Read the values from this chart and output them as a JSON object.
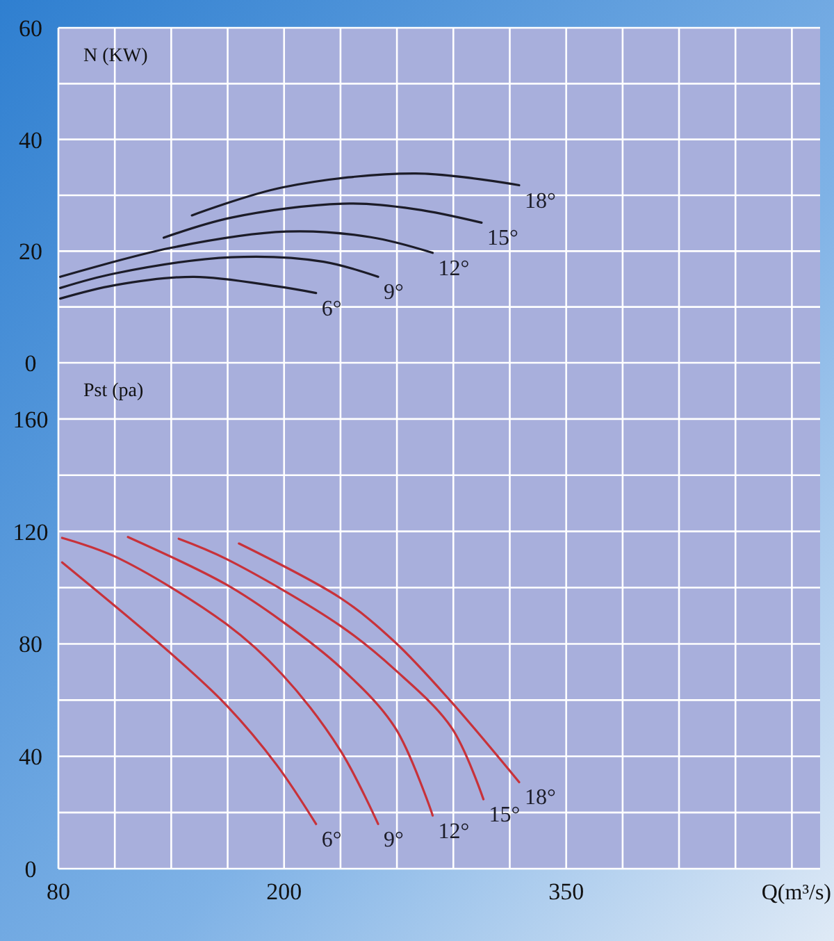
{
  "chart_data": [
    {
      "type": "line",
      "ylabel": "N (KW)",
      "xlim": [
        80,
        485
      ],
      "ylim": [
        0,
        60
      ],
      "xticks": [
        80,
        {
          "value": 110,
          "label": null
        },
        {
          "value": 140,
          "label": null
        },
        {
          "value": 170,
          "label": null
        },
        200,
        {
          "value": 230,
          "label": null
        },
        {
          "value": 260,
          "label": null
        },
        {
          "value": 290,
          "label": null
        },
        {
          "value": 320,
          "label": null
        },
        350,
        {
          "value": 380,
          "label": null
        },
        {
          "value": 410,
          "label": null
        },
        {
          "value": 440,
          "label": null
        },
        {
          "value": 470,
          "label": null
        }
      ],
      "yticks": [
        0,
        {
          "value": 10,
          "label": null
        },
        20,
        {
          "value": 30,
          "label": null
        },
        40,
        {
          "value": 50,
          "label": null
        },
        60
      ],
      "tick_labels": "y",
      "grid": true,
      "marker": "none",
      "line_style": "solid",
      "series": [
        {
          "name": "6°",
          "color": "#1c1c28",
          "x": [
            81,
            110,
            152,
            196,
            217
          ],
          "values": [
            11.5,
            13.9,
            15.4,
            13.7,
            12.5
          ]
        },
        {
          "name": "9°",
          "color": "#1c1c28",
          "x": [
            81,
            110,
            172,
            221,
            250
          ],
          "values": [
            13.4,
            16.0,
            18.9,
            18.1,
            15.4
          ]
        },
        {
          "name": "12°",
          "color": "#1c1c28",
          "x": [
            81,
            140,
            201,
            246,
            279
          ],
          "values": [
            15.4,
            20.6,
            23.5,
            22.5,
            19.7
          ]
        },
        {
          "name": "15°",
          "color": "#1c1c28",
          "x": [
            136,
            172,
            231,
            270,
            305
          ],
          "values": [
            22.4,
            26.0,
            28.5,
            27.5,
            25.1
          ]
        },
        {
          "name": "18°",
          "color": "#1c1c28",
          "x": [
            151,
            199,
            270,
            325
          ],
          "values": [
            26.4,
            31.4,
            33.9,
            31.8
          ]
        }
      ]
    },
    {
      "type": "line",
      "ylabel": "Pst (pa)",
      "xlabel": "Q(m³/s)",
      "xlim": [
        80,
        485
      ],
      "ylim": [
        0,
        180
      ],
      "xticks": [
        80,
        {
          "value": 110,
          "label": null
        },
        {
          "value": 140,
          "label": null
        },
        {
          "value": 170,
          "label": null
        },
        200,
        {
          "value": 230,
          "label": null
        },
        {
          "value": 260,
          "label": null
        },
        {
          "value": 290,
          "label": null
        },
        {
          "value": 320,
          "label": null
        },
        350,
        {
          "value": 380,
          "label": null
        },
        {
          "value": 410,
          "label": null
        },
        {
          "value": 440,
          "label": null
        },
        {
          "value": 470,
          "label": null
        }
      ],
      "yticks": [
        0,
        {
          "value": 20,
          "label": null
        },
        40,
        {
          "value": 60,
          "label": null
        },
        80,
        {
          "value": 100,
          "label": null
        },
        120,
        {
          "value": 140,
          "label": null
        },
        160
      ],
      "grid": true,
      "marker": "none",
      "line_style": "solid",
      "series": [
        {
          "name": "6°",
          "color": "#c8323a",
          "x": [
            82,
            140,
            169,
            196,
            217
          ],
          "values": [
            109,
            76.5,
            58.4,
            37.0,
            15.9
          ]
        },
        {
          "name": "9°",
          "color": "#c8323a",
          "x": [
            82,
            110,
            169,
            199,
            230,
            250
          ],
          "values": [
            117.7,
            111.1,
            87.2,
            69.1,
            42,
            15.9
          ]
        },
        {
          "name": "12°",
          "color": "#c8323a",
          "x": [
            117,
            169,
            199,
            230,
            259,
            279
          ],
          "values": [
            118,
            101.2,
            88,
            71.6,
            50.2,
            18.9
          ]
        },
        {
          "name": "15°",
          "color": "#c8323a",
          "x": [
            144,
            169,
            230,
            259,
            289,
            306
          ],
          "values": [
            117.4,
            110.3,
            86.4,
            70.8,
            50.2,
            24.7
          ]
        },
        {
          "name": "18°",
          "color": "#c8323a",
          "x": [
            176,
            230,
            259,
            289,
            325
          ],
          "values": [
            115.7,
            96.3,
            80.6,
            59.3,
            30.8
          ]
        }
      ]
    }
  ]
}
